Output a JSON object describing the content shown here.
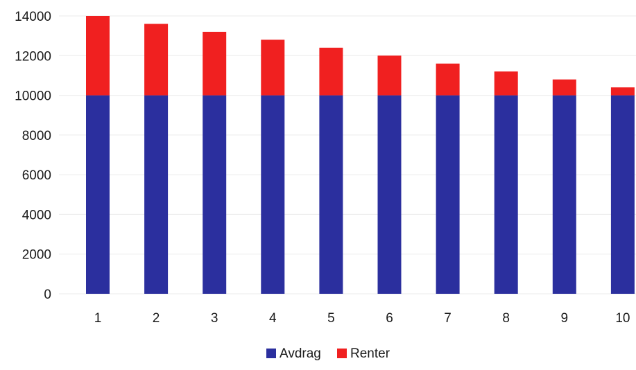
{
  "chart_data": {
    "type": "bar",
    "stacked": true,
    "categories": [
      "1",
      "2",
      "3",
      "4",
      "5",
      "6",
      "7",
      "8",
      "9",
      "10"
    ],
    "series": [
      {
        "name": "Avdrag",
        "color": "#2b2f9e",
        "values": [
          10000,
          10000,
          10000,
          10000,
          10000,
          10000,
          10000,
          10000,
          10000,
          10000
        ]
      },
      {
        "name": "Renter",
        "color": "#f02020",
        "values": [
          4000,
          3600,
          3200,
          2800,
          2400,
          2000,
          1600,
          1200,
          800,
          400
        ]
      }
    ],
    "y_ticks": [
      "0",
      "2000",
      "4000",
      "6000",
      "8000",
      "10000",
      "12000",
      "14000"
    ],
    "ylim": [
      0,
      14000
    ],
    "grid": true,
    "legend_position": "bottom-center",
    "title": "",
    "xlabel": "",
    "ylabel": ""
  }
}
